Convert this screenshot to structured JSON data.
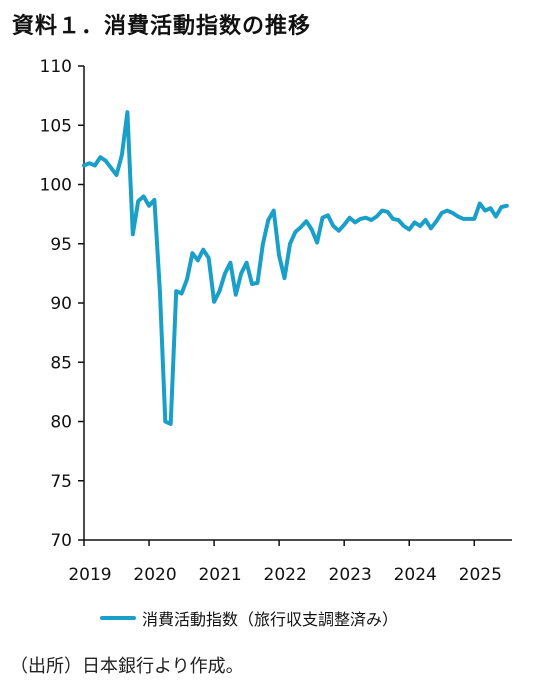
{
  "title": "資料１．消費活動指数の推移",
  "source_note": "（出所）日本銀行より作成。",
  "colors": {
    "series": "#1a9fc8",
    "axis": "#111111"
  },
  "chart_data": {
    "type": "line",
    "title": "資料１．消費活動指数の推移",
    "xlabel": "",
    "ylabel": "",
    "ylim": [
      70,
      110
    ],
    "xlim": [
      2019.0,
      2025.58
    ],
    "y_ticks": [
      70,
      75,
      80,
      85,
      90,
      95,
      100,
      105,
      110
    ],
    "x_tick_labels": [
      "2019",
      "2020",
      "2021",
      "2022",
      "2023",
      "2024",
      "2025"
    ],
    "x_tick_values": [
      2019,
      2020,
      2021,
      2022,
      2023,
      2024,
      2025
    ],
    "grid": false,
    "legend_position": "bottom",
    "series": [
      {
        "name": "消費活動指数（旅行収支調整済み）",
        "x": [
          2019.0,
          2019.083,
          2019.167,
          2019.25,
          2019.333,
          2019.417,
          2019.5,
          2019.583,
          2019.667,
          2019.75,
          2019.833,
          2019.917,
          2020.0,
          2020.083,
          2020.167,
          2020.25,
          2020.333,
          2020.417,
          2020.5,
          2020.583,
          2020.667,
          2020.75,
          2020.833,
          2020.917,
          2021.0,
          2021.083,
          2021.167,
          2021.25,
          2021.333,
          2021.417,
          2021.5,
          2021.583,
          2021.667,
          2021.75,
          2021.833,
          2021.917,
          2022.0,
          2022.083,
          2022.167,
          2022.25,
          2022.333,
          2022.417,
          2022.5,
          2022.583,
          2022.667,
          2022.75,
          2022.833,
          2022.917,
          2023.0,
          2023.083,
          2023.167,
          2023.25,
          2023.333,
          2023.417,
          2023.5,
          2023.583,
          2023.667,
          2023.75,
          2023.833,
          2023.917,
          2024.0,
          2024.083,
          2024.167,
          2024.25,
          2024.333,
          2024.417,
          2024.5,
          2024.583,
          2024.667,
          2024.75,
          2024.833,
          2024.917,
          2025.0,
          2025.083,
          2025.167,
          2025.25,
          2025.333,
          2025.417,
          2025.5
        ],
        "values": [
          101.6,
          101.8,
          101.6,
          102.3,
          102.0,
          101.4,
          100.8,
          102.5,
          106.1,
          95.8,
          98.6,
          99.0,
          98.2,
          98.7,
          91.0,
          80.0,
          79.8,
          91.0,
          90.8,
          92.0,
          94.2,
          93.6,
          94.5,
          93.8,
          90.1,
          91.0,
          92.5,
          93.4,
          90.7,
          92.5,
          93.4,
          91.6,
          91.7,
          95.0,
          97.0,
          97.8,
          94.0,
          92.1,
          95.0,
          96.0,
          96.4,
          96.9,
          96.2,
          95.1,
          97.2,
          97.4,
          96.5,
          96.1,
          96.6,
          97.2,
          96.8,
          97.1,
          97.2,
          97.0,
          97.3,
          97.8,
          97.7,
          97.1,
          97.0,
          96.5,
          96.2,
          96.8,
          96.5,
          97.0,
          96.3,
          96.9,
          97.6,
          97.8,
          97.6,
          97.3,
          97.1,
          97.1,
          97.1,
          98.4,
          97.8,
          98.0,
          97.3,
          98.1,
          98.2
        ]
      }
    ]
  }
}
